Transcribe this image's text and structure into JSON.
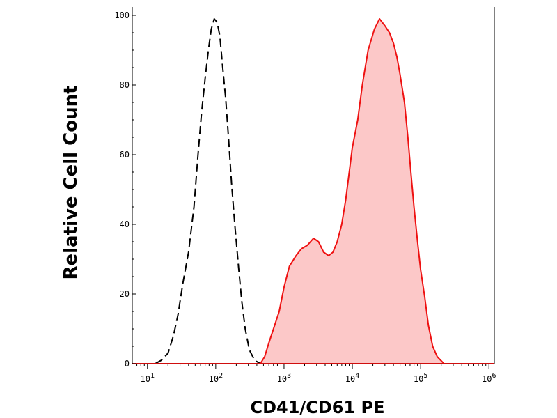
{
  "chart_data": {
    "type": "area",
    "title": "",
    "xlabel": "CD41/CD61 PE",
    "ylabel": "Relative Cell Count",
    "xscale": "log",
    "xlim": [
      6,
      1200000
    ],
    "ylim": [
      0,
      105
    ],
    "x_ticks": [
      {
        "value": 10,
        "base": "10",
        "exp": "1"
      },
      {
        "value": 100,
        "base": "10",
        "exp": "2"
      },
      {
        "value": 1000,
        "base": "10",
        "exp": "3"
      },
      {
        "value": 10000,
        "base": "10",
        "exp": "4"
      },
      {
        "value": 100000,
        "base": "10",
        "exp": "5"
      },
      {
        "value": 1000000,
        "base": "10",
        "exp": "6"
      }
    ],
    "y_ticks": [
      "0",
      "20",
      "40",
      "60",
      "80",
      "100"
    ],
    "grid": false,
    "legend": "none",
    "series": [
      {
        "style": "dashed",
        "color": "#000000",
        "fill": "none",
        "points": [
          [
            13,
            0
          ],
          [
            16,
            1
          ],
          [
            20,
            3
          ],
          [
            24,
            8
          ],
          [
            28,
            14
          ],
          [
            33,
            23
          ],
          [
            40,
            32
          ],
          [
            48,
            45
          ],
          [
            55,
            60
          ],
          [
            62,
            72
          ],
          [
            70,
            82
          ],
          [
            78,
            90
          ],
          [
            86,
            96
          ],
          [
            95,
            99
          ],
          [
            105,
            98
          ],
          [
            115,
            94
          ],
          [
            125,
            86
          ],
          [
            140,
            76
          ],
          [
            155,
            64
          ],
          [
            170,
            52
          ],
          [
            190,
            40
          ],
          [
            215,
            28
          ],
          [
            240,
            18
          ],
          [
            270,
            10
          ],
          [
            310,
            4
          ],
          [
            370,
            1
          ],
          [
            450,
            0
          ]
        ]
      },
      {
        "style": "solid",
        "color": "#ee1111",
        "fill": "#fcc8c8",
        "points": [
          [
            450,
            0
          ],
          [
            520,
            2
          ],
          [
            600,
            6
          ],
          [
            700,
            10
          ],
          [
            850,
            15
          ],
          [
            1000,
            22
          ],
          [
            1200,
            28
          ],
          [
            1500,
            31
          ],
          [
            1800,
            33
          ],
          [
            2200,
            34
          ],
          [
            2700,
            36
          ],
          [
            3200,
            35
          ],
          [
            3800,
            32
          ],
          [
            4500,
            31
          ],
          [
            5200,
            32
          ],
          [
            6000,
            35
          ],
          [
            7000,
            40
          ],
          [
            8000,
            47
          ],
          [
            9000,
            55
          ],
          [
            10000,
            62
          ],
          [
            12000,
            70
          ],
          [
            14000,
            80
          ],
          [
            17000,
            90
          ],
          [
            21000,
            96
          ],
          [
            25000,
            99
          ],
          [
            30000,
            97
          ],
          [
            35000,
            95
          ],
          [
            40000,
            92
          ],
          [
            45000,
            88
          ],
          [
            50000,
            83
          ],
          [
            58000,
            75
          ],
          [
            65000,
            65
          ],
          [
            72000,
            55
          ],
          [
            80000,
            45
          ],
          [
            90000,
            35
          ],
          [
            100000,
            27
          ],
          [
            115000,
            19
          ],
          [
            130000,
            11
          ],
          [
            150000,
            5
          ],
          [
            175000,
            2
          ],
          [
            220000,
            0
          ]
        ]
      }
    ]
  }
}
